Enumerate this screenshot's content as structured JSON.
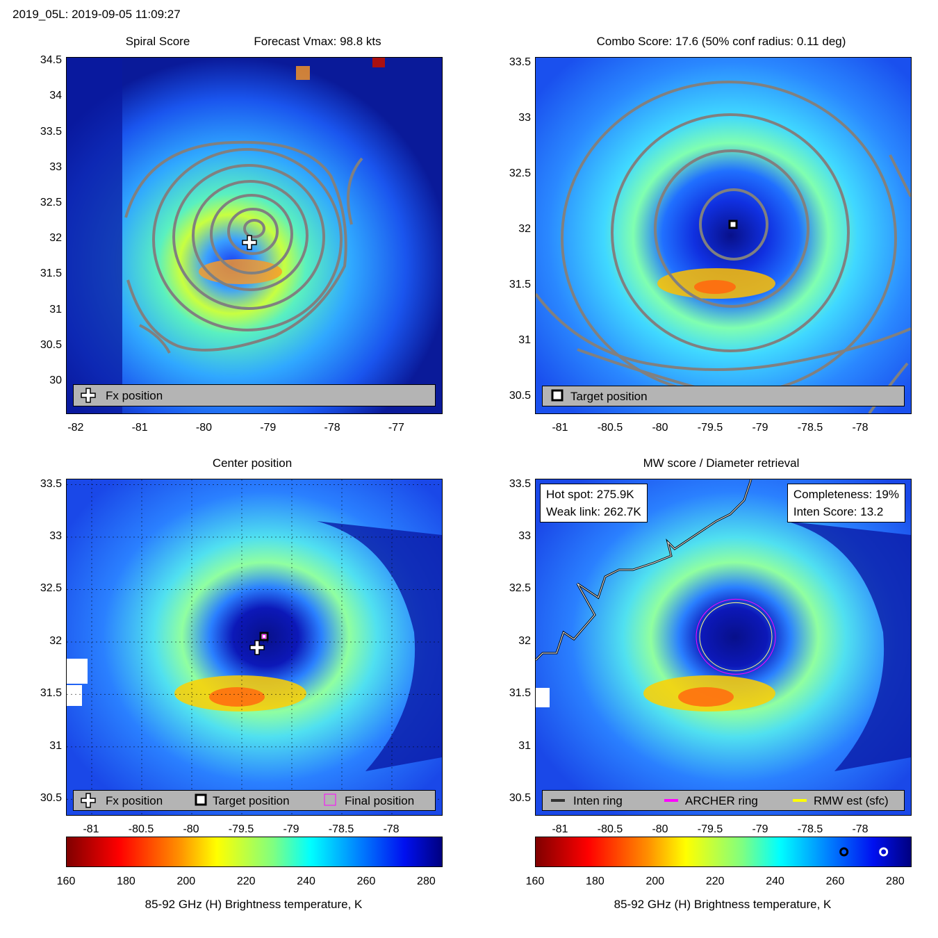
{
  "header": {
    "title": "2019_05L: 2019-09-05 11:09:27"
  },
  "panels": {
    "tl": {
      "title": "Spiral Score",
      "title2": "Forecast Vmax: 98.8 kts",
      "legend": [
        "Fx position"
      ]
    },
    "tr": {
      "title": "Combo Score: 17.6  (50% conf radius: 0.11 deg)",
      "legend": [
        "Target position"
      ]
    },
    "bl": {
      "title": "Center position",
      "legend": [
        "Fx position",
        "Target position",
        "Final position"
      ]
    },
    "br": {
      "title": "MW score / Diameter retrieval",
      "legend": [
        "Inten ring",
        "ARCHER ring",
        "RMW est (sfc)"
      ],
      "info_left": [
        "Hot spot: 275.9K",
        "Weak link: 262.7K"
      ],
      "info_right": [
        "Completeness: 19%",
        "Inten Score: 13.2"
      ]
    }
  },
  "colorbar": {
    "label": "85-92 GHz (H) Brightness temperature, K"
  },
  "colors": {
    "contour": "#808080",
    "legend_bg": "#b4b4b4",
    "archer": "#ff00ff",
    "rmw": "#ffff00",
    "inten": "#333333"
  },
  "chart_data": [
    {
      "type": "heatmap",
      "name_key": "tl",
      "xticks": [
        "-82",
        "-81",
        "-80",
        "-79",
        "-78",
        "-77"
      ],
      "xlim": [
        -82.15,
        -76.3
      ],
      "yticks": [
        "30",
        "30.5",
        "31",
        "31.5",
        "32",
        "32.5",
        "33",
        "33.5",
        "34",
        "34.5"
      ],
      "ylim": [
        29.55,
        34.55
      ],
      "markers": {
        "fx_position": [
          -79.3,
          31.95
        ]
      }
    },
    {
      "type": "heatmap",
      "name_key": "tr",
      "xticks": [
        "-81",
        "-80.5",
        "-80",
        "-79.5",
        "-79",
        "-78.5",
        "-78"
      ],
      "xlim": [
        -81.25,
        -77.5
      ],
      "yticks": [
        "30.5",
        "31",
        "31.5",
        "32",
        "32.5",
        "33",
        "33.5"
      ],
      "ylim": [
        30.35,
        33.55
      ],
      "markers": {
        "target_position": [
          -79.28,
          32.05
        ]
      }
    },
    {
      "type": "heatmap",
      "name_key": "bl",
      "xticks": [
        "-81",
        "-80.5",
        "-80",
        "-79.5",
        "-79",
        "-78.5",
        "-78"
      ],
      "xlim": [
        -81.25,
        -77.5
      ],
      "yticks": [
        "30.5",
        "31",
        "31.5",
        "32",
        "32.5",
        "33",
        "33.5"
      ],
      "ylim": [
        30.35,
        33.55
      ],
      "markers": {
        "fx_position": [
          -79.35,
          31.95
        ],
        "target_position": [
          -79.28,
          32.05
        ]
      }
    },
    {
      "type": "heatmap",
      "name_key": "br",
      "xticks": [
        "-81",
        "-80.5",
        "-80",
        "-79.5",
        "-79",
        "-78.5",
        "-78"
      ],
      "xlim": [
        -81.25,
        -77.5
      ],
      "yticks": [
        "30.5",
        "31",
        "31.5",
        "32",
        "32.5",
        "33",
        "33.5"
      ],
      "ylim": [
        30.35,
        33.55
      ],
      "rings": {
        "center": [
          -79.25,
          32.05
        ]
      }
    },
    {
      "type": "colorbar",
      "ticks": [
        "160",
        "180",
        "200",
        "220",
        "240",
        "260",
        "280"
      ],
      "range": [
        160,
        285
      ],
      "colormap": "jet_reversed",
      "label": "85-92 GHz (H) Brightness temperature, K",
      "markers_right_bar": [
        262.7,
        275.9
      ]
    }
  ]
}
